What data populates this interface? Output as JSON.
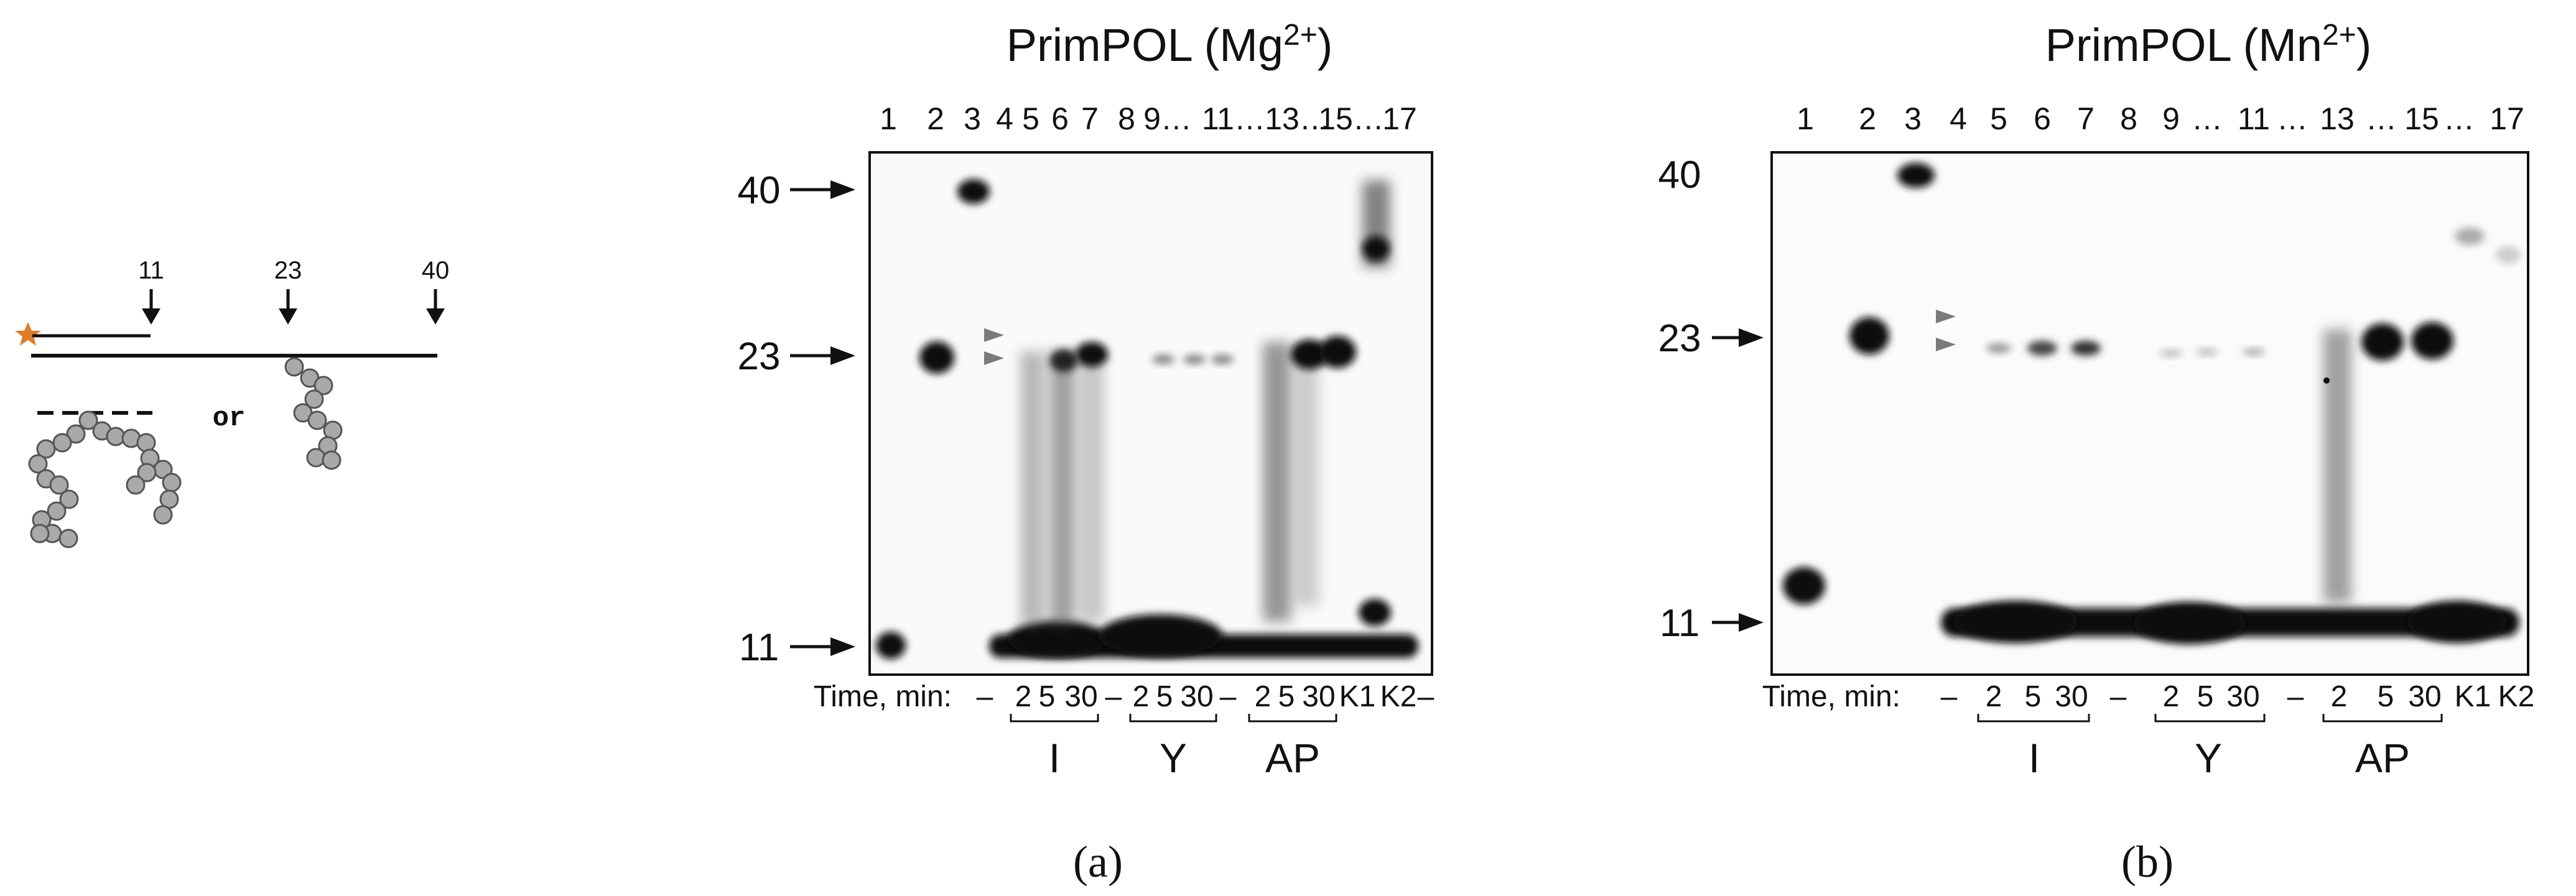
{
  "schematic": {
    "positions": [
      "11",
      "23",
      "40"
    ],
    "or_label": "or",
    "star_color": "#e07b2a",
    "bead_color": "#a9a9a9"
  },
  "panels": [
    {
      "title": "PrimPOL (Mg",
      "title_sup": "2+",
      "title_close": ")",
      "lane_labels": [
        "1",
        "2",
        "3",
        "4",
        "5",
        "6",
        "7",
        "8",
        "9…",
        "11…",
        "13…",
        "15…",
        "17"
      ],
      "size_markers": [
        "40",
        "23",
        "11"
      ],
      "time_label": "Time, min:",
      "time_values": [
        "–",
        "2",
        "5",
        "30",
        "–",
        "2",
        "5",
        "30",
        "–",
        "2",
        "5",
        "30",
        "K1",
        "K2",
        "–"
      ],
      "groups": [
        "I",
        "Y",
        "AP"
      ],
      "panel_label": "(a)"
    },
    {
      "title": "PrimPOL (Mn",
      "title_sup": "2+",
      "title_close": ")",
      "lane_labels": [
        "1",
        "2",
        "3",
        "4",
        "5",
        "6",
        "7",
        "8",
        "9",
        "…",
        "11",
        "…",
        "13",
        "…",
        "15",
        "…",
        "17"
      ],
      "size_markers": [
        "40",
        "23",
        "11"
      ],
      "time_label": "Time, min:",
      "time_values": [
        "–",
        "2",
        "5",
        "30",
        "–",
        "2",
        "5",
        "30",
        "–",
        "2",
        "5",
        "30",
        "K1",
        "K2"
      ],
      "groups": [
        "I",
        "Y",
        "AP"
      ],
      "panel_label": "(b)"
    }
  ]
}
